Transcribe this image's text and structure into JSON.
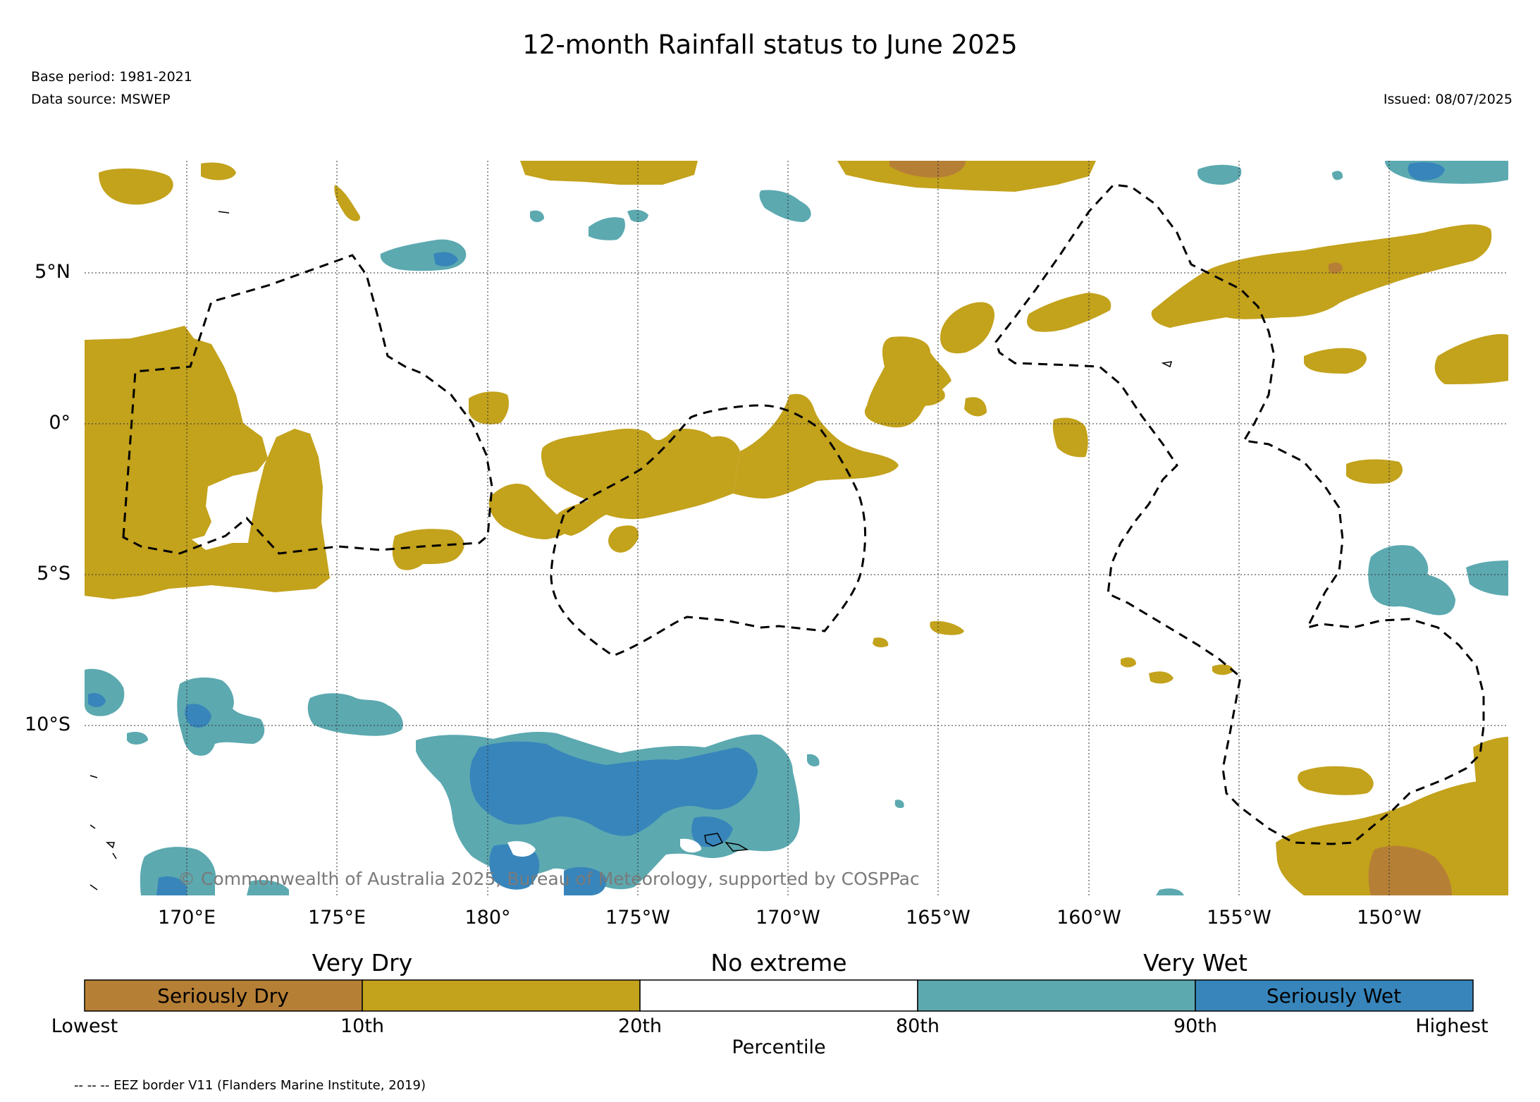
{
  "header": {
    "title": "12-month Rainfall status to June 2025",
    "base_period": "Base period: 1981-2021",
    "data_source": "Data source: MSWEP",
    "issued": "Issued: 08/07/2025"
  },
  "map": {
    "lat_labels": [
      "5°N",
      "0°",
      "5°S",
      "10°S"
    ],
    "lon_labels": [
      "170°E",
      "175°E",
      "180°",
      "175°W",
      "170°W",
      "165°W",
      "160°W",
      "155°W",
      "150°W"
    ],
    "copyright": "© Commonwealth of Australia 2025, Bureau of Meteorology, supported by COSPPac",
    "colors": {
      "seriously_dry": "#b67f36",
      "very_dry": "#c3a21c",
      "no_extreme": "#ffffff",
      "very_wet": "#5ca9b0",
      "seriously_wet": "#3785bb"
    }
  },
  "legend": {
    "group_labels": {
      "very_dry": "Very Dry",
      "no_extreme": "No extreme",
      "very_wet": "Very Wet"
    },
    "box_labels": {
      "seriously_dry": "Seriously Dry",
      "seriously_wet": "Seriously Wet"
    },
    "ticks": [
      "Lowest",
      "10th",
      "20th",
      "80th",
      "90th",
      "Highest"
    ],
    "axis_label": "Percentile",
    "segment_colors": [
      "#b67f36",
      "#c3a21c",
      "#ffffff",
      "#5ca9b0",
      "#3785bb"
    ]
  },
  "footnote": "-- -- -- EEZ border V11 (Flanders Marine Institute, 2019)"
}
